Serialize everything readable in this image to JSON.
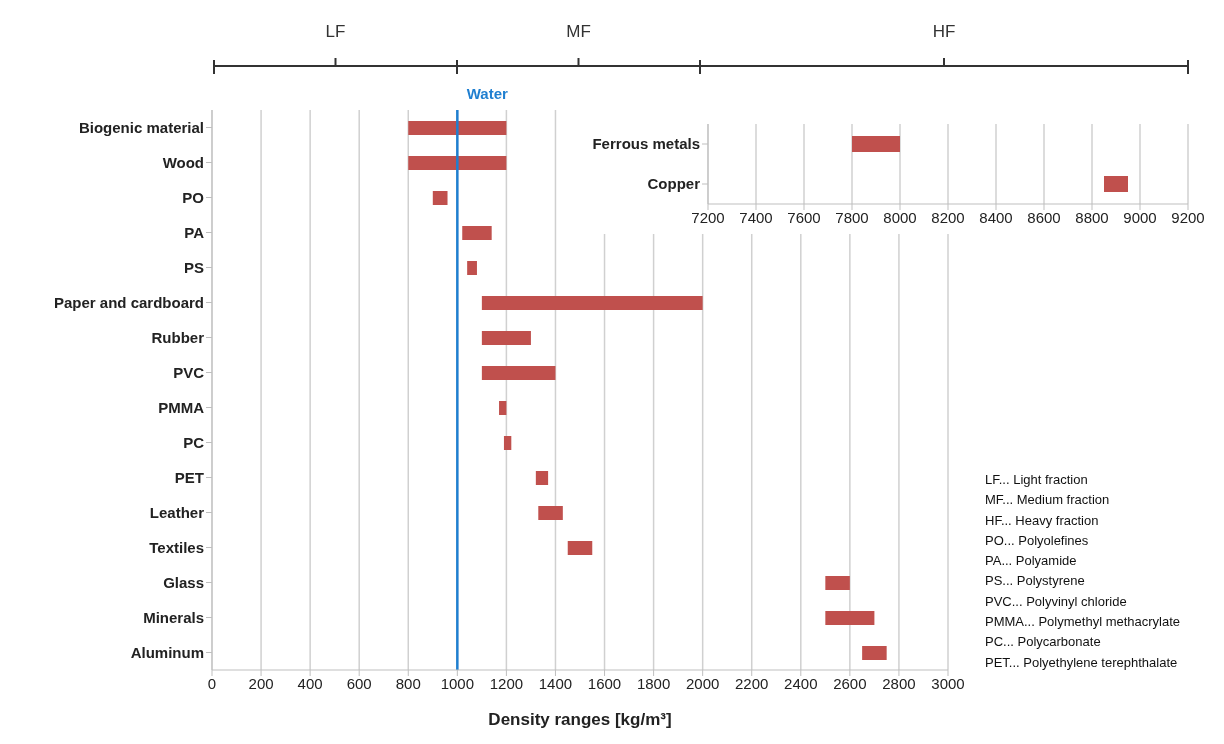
{
  "chart_data": [
    {
      "type": "bar",
      "orientation": "horizontal",
      "xlabel": "Density ranges [kg/m³]",
      "categories": [
        "Biogenic material",
        "Wood",
        "PO",
        "PA",
        "PS",
        "Paper and cardboard",
        "Rubber",
        "PVC",
        "PMMA",
        "PC",
        "PET",
        "Leather",
        "Textiles",
        "Glass",
        "Minerals",
        "Aluminum"
      ],
      "base": [
        800,
        800,
        900,
        1020,
        1040,
        1100,
        1100,
        1100,
        1170,
        1190,
        1320,
        1330,
        1450,
        2500,
        2500,
        2650
      ],
      "values": [
        400,
        400,
        60,
        120,
        40,
        900,
        200,
        300,
        30,
        30,
        50,
        100,
        100,
        100,
        200,
        100
      ],
      "color": "#c0504d",
      "xlim": [
        0,
        3000
      ],
      "xticks": [
        0,
        200,
        400,
        600,
        800,
        1000,
        1200,
        1400,
        1600,
        1800,
        2000,
        2200,
        2400,
        2600,
        2800,
        3000
      ],
      "grid": "x",
      "ref_lines": [
        {
          "axis": "x",
          "value": 1000,
          "label": "Water",
          "color": "#1f7fd0"
        }
      ],
      "annotations": [
        "LF",
        "MF",
        "HF",
        "LF... Light fraction",
        "MF... Medium fraction",
        "HF... Heavy fraction",
        "PO... Polyolefines",
        "PA... Polyamide",
        "PS... Polystyrene",
        "PVC... Polyvinyl chloride",
        "PMMA... Polymethyl methacrylate",
        "PC... Polycarbonate",
        "PET... Polyethylene terephthalate"
      ]
    },
    {
      "type": "bar",
      "orientation": "horizontal",
      "categories": [
        "Ferrous metals",
        "Copper"
      ],
      "base": [
        7800,
        8850
      ],
      "values": [
        200,
        100
      ],
      "color": "#c0504d",
      "xlim": [
        7200,
        9200
      ],
      "xticks": [
        7200,
        7400,
        7600,
        7800,
        8000,
        8200,
        8400,
        8600,
        8800,
        9000,
        9200
      ],
      "grid": "x"
    }
  ]
}
